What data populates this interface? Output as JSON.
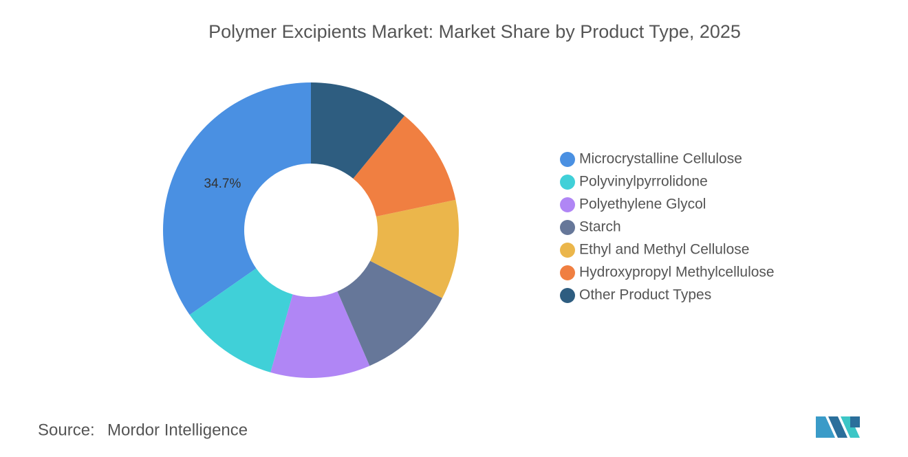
{
  "chart_data": {
    "type": "pie",
    "title": "Polymer Excipients Market: Market Share by Product Type, 2025",
    "categories": [
      "Microcrystalline Cellulose",
      "Polyvinylpyrrolidone",
      "Polyethylene Glycol",
      "Starch",
      "Ethyl and Methyl Cellulose",
      "Hydroxypropyl Methylcellulose",
      "Other Product Types"
    ],
    "values": [
      34.7,
      10.9,
      10.9,
      10.9,
      10.9,
      10.8,
      10.9
    ],
    "value_labels": [
      "34.7%",
      null,
      null,
      null,
      null,
      null,
      null
    ],
    "colors": [
      "#4a90e2",
      "#40d0d8",
      "#b086f5",
      "#667799",
      "#ebb64b",
      "#f07f41",
      "#2e5d80"
    ],
    "donut": true
  },
  "source": {
    "label": "Source:",
    "text": "Mordor Intelligence"
  }
}
